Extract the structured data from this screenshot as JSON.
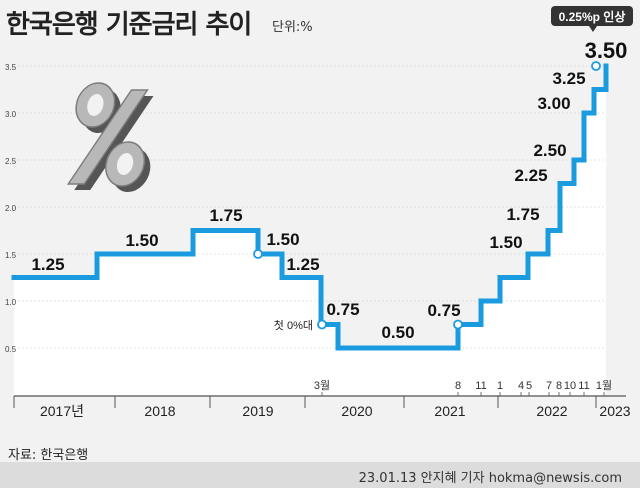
{
  "title": "한국은행 기준금리 추이",
  "unit": "단위:%",
  "source": "자료: 한국은행",
  "credit": "23.01.13 안지혜 기자 hokma@newsis.com",
  "colors": {
    "line": "#1a9be0",
    "highlight": "#d81e2e",
    "callout_bg": "#333333",
    "axis": "#555555",
    "grid": "#cccccc",
    "area": "#ffffff",
    "background": "#f2f2f2"
  },
  "decoration": "percent-sign-3d-icon",
  "chart_data": {
    "type": "line",
    "step": true,
    "title": "한국은행 기준금리 추이",
    "ylabel": "",
    "xlabel": "",
    "ylim": [
      0,
      3.5
    ],
    "y_ticks": [
      "3.5",
      "3.0",
      "2.5",
      "2.0",
      "1.5",
      "1.0",
      "0.5"
    ],
    "x_years": [
      "2017년",
      "2018",
      "2019",
      "2020",
      "2021",
      "2022",
      "2023"
    ],
    "series": [
      {
        "values": [
          1.25,
          1.5,
          1.75,
          1.5,
          1.25,
          0.75,
          0.5,
          0.75,
          1.0,
          1.25,
          1.5,
          1.75,
          2.25,
          2.5,
          3.0,
          3.25,
          3.5
        ],
        "labels": [
          "1.25",
          "1.50",
          "1.75",
          "1.50",
          "1.25",
          "0.75",
          "0.50",
          "0.75",
          "",
          "",
          "1.50",
          "1.75",
          "2.25",
          "2.50",
          "3.00",
          "3.25",
          "3.50"
        ]
      }
    ],
    "month_labels": [
      "3월",
      "8",
      "11",
      "1",
      "4",
      "5",
      "7",
      "8",
      "10",
      "11",
      "1월"
    ],
    "annotations": {
      "first_zero_percent": "첫 0%대",
      "latest_hike": "0.25%p 인상"
    }
  }
}
